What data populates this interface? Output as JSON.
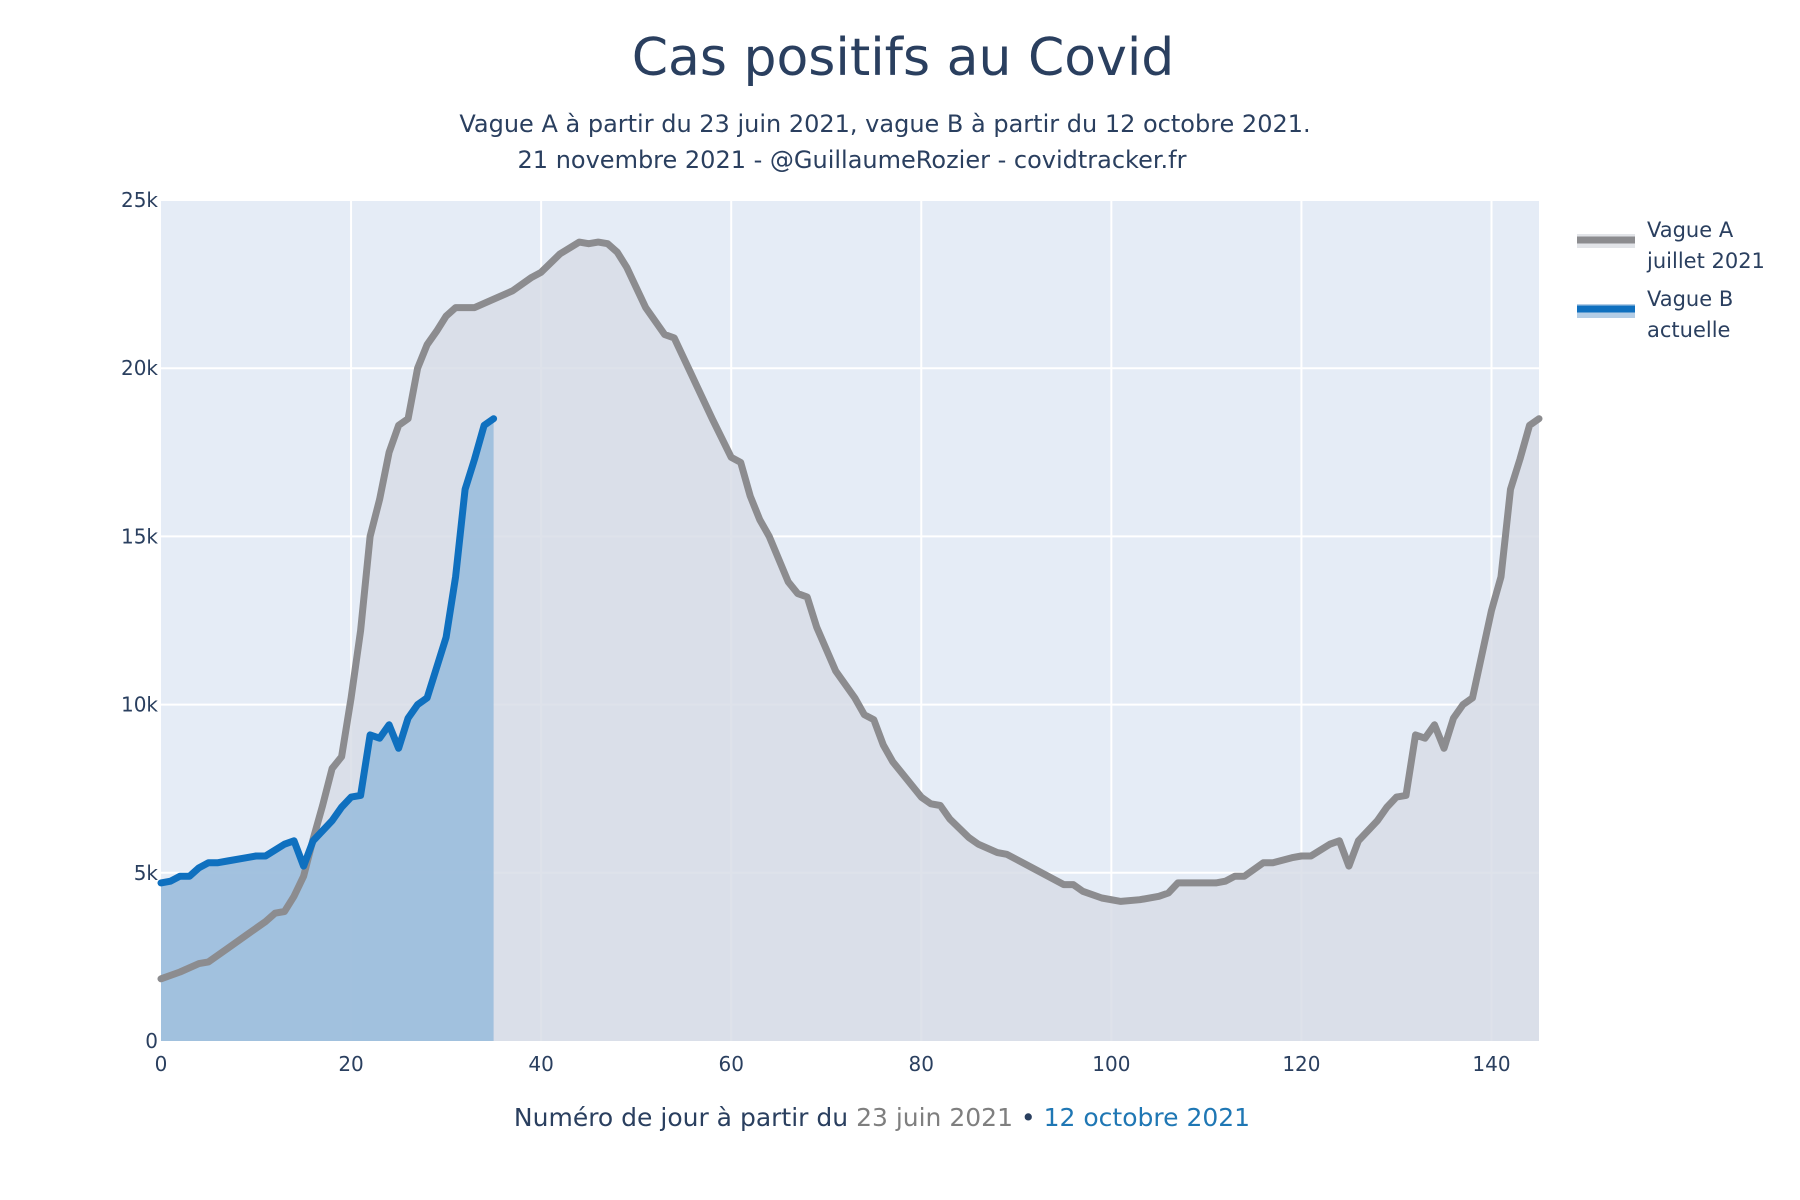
{
  "chart_data": {
    "type": "line",
    "title": "Cas positifs au Covid",
    "subtitle": [
      "Vague A à partir du 23 juin 2021, vague B à partir du 12 octobre 2021.",
      "21 novembre 2021 - @GuillaumeRozier - covidtracker.fr"
    ],
    "xlabel": {
      "prefix": "Numéro de jour à partir du ",
      "date_a": "23 juin 2021",
      "separator": " • ",
      "date_b": "12 octobre 2021"
    },
    "xlim": [
      0,
      145
    ],
    "ylim": [
      0,
      25000
    ],
    "x_ticks": [
      0,
      20,
      40,
      60,
      80,
      100,
      120,
      140
    ],
    "x_tick_labels": [
      "0",
      "20",
      "40",
      "60",
      "80",
      "100",
      "120",
      "140"
    ],
    "y_ticks": [
      0,
      5000,
      10000,
      15000,
      20000,
      25000
    ],
    "y_tick_labels": [
      "0",
      "5k",
      "10k",
      "15k",
      "20k",
      "25k"
    ],
    "grid": true,
    "legend_position": "top-right",
    "colors": {
      "plot_bg": "#e5ecf6",
      "wave_a_line": "#8c8c8f",
      "wave_a_fill": "#d8dde6",
      "wave_b_line": "#0f70bf",
      "wave_b_fill": "#9ebfdd",
      "xlabel_date_a": "#7f7f7f",
      "xlabel_date_b": "#1f77b4"
    },
    "series": [
      {
        "name": "Vague A juillet 2021",
        "legend_lines": [
          "Vague A",
          "juillet 2021"
        ],
        "points": [
          [
            0,
            1850
          ],
          [
            2,
            2050
          ],
          [
            4,
            2300
          ],
          [
            5,
            2350
          ],
          [
            7,
            2750
          ],
          [
            9,
            3150
          ],
          [
            11,
            3550
          ],
          [
            12,
            3800
          ],
          [
            13,
            3850
          ],
          [
            14,
            4300
          ],
          [
            15,
            4900
          ],
          [
            16,
            6000
          ],
          [
            17,
            7000
          ],
          [
            18,
            8100
          ],
          [
            19,
            8450
          ],
          [
            20,
            10200
          ],
          [
            21,
            12200
          ],
          [
            22,
            15000
          ],
          [
            23,
            16100
          ],
          [
            24,
            17500
          ],
          [
            25,
            18300
          ],
          [
            26,
            18500
          ],
          [
            27,
            20000
          ],
          [
            28,
            20700
          ],
          [
            29,
            21100
          ],
          [
            30,
            21550
          ],
          [
            31,
            21800
          ],
          [
            33,
            21800
          ],
          [
            35,
            22050
          ],
          [
            37,
            22300
          ],
          [
            39,
            22700
          ],
          [
            40,
            22850
          ],
          [
            42,
            23400
          ],
          [
            44,
            23750
          ],
          [
            45,
            23700
          ],
          [
            46,
            23750
          ],
          [
            47,
            23700
          ],
          [
            48,
            23450
          ],
          [
            49,
            23000
          ],
          [
            51,
            21800
          ],
          [
            53,
            21000
          ],
          [
            54,
            20900
          ],
          [
            56,
            19700
          ],
          [
            58,
            18500
          ],
          [
            60,
            17350
          ],
          [
            61,
            17200
          ],
          [
            62,
            16200
          ],
          [
            63,
            15500
          ],
          [
            64,
            15000
          ],
          [
            66,
            13650
          ],
          [
            67,
            13300
          ],
          [
            68,
            13200
          ],
          [
            69,
            12300
          ],
          [
            71,
            11000
          ],
          [
            73,
            10200
          ],
          [
            74,
            9700
          ],
          [
            75,
            9550
          ],
          [
            76,
            8800
          ],
          [
            77,
            8300
          ],
          [
            78,
            7950
          ],
          [
            80,
            7250
          ],
          [
            81,
            7050
          ],
          [
            82,
            7000
          ],
          [
            83,
            6600
          ],
          [
            85,
            6050
          ],
          [
            86,
            5850
          ],
          [
            88,
            5600
          ],
          [
            89,
            5550
          ],
          [
            91,
            5250
          ],
          [
            93,
            4950
          ],
          [
            95,
            4650
          ],
          [
            96,
            4650
          ],
          [
            97,
            4450
          ],
          [
            99,
            4250
          ],
          [
            101,
            4150
          ],
          [
            103,
            4200
          ],
          [
            105,
            4300
          ],
          [
            106,
            4400
          ],
          [
            107,
            4700
          ],
          [
            109,
            4700
          ],
          [
            111,
            4700
          ],
          [
            112,
            4750
          ],
          [
            113,
            4900
          ],
          [
            114,
            4900
          ],
          [
            116,
            5300
          ],
          [
            117,
            5300
          ],
          [
            119,
            5450
          ],
          [
            120,
            5500
          ],
          [
            121,
            5500
          ],
          [
            123,
            5850
          ],
          [
            124,
            5950
          ],
          [
            125,
            5200
          ],
          [
            126,
            5950
          ],
          [
            128,
            6550
          ],
          [
            129,
            6950
          ],
          [
            130,
            7250
          ],
          [
            131,
            7300
          ],
          [
            132,
            9100
          ],
          [
            133,
            9000
          ],
          [
            134,
            9400
          ],
          [
            135,
            8700
          ],
          [
            136,
            9600
          ],
          [
            137,
            10000
          ],
          [
            138,
            10200
          ],
          [
            139,
            11500
          ],
          [
            140,
            12800
          ],
          [
            141,
            13800
          ],
          [
            142,
            16400
          ],
          [
            143,
            17300
          ],
          [
            144,
            18300
          ],
          [
            145,
            18500
          ]
        ]
      },
      {
        "name": "Vague B actuelle",
        "legend_lines": [
          "Vague B",
          "actuelle"
        ],
        "points": [
          [
            0,
            4700
          ],
          [
            1,
            4750
          ],
          [
            2,
            4900
          ],
          [
            3,
            4900
          ],
          [
            4,
            5150
          ],
          [
            5,
            5300
          ],
          [
            6,
            5300
          ],
          [
            7,
            5350
          ],
          [
            9,
            5450
          ],
          [
            10,
            5500
          ],
          [
            11,
            5500
          ],
          [
            13,
            5850
          ],
          [
            14,
            5950
          ],
          [
            15,
            5200
          ],
          [
            16,
            5950
          ],
          [
            18,
            6550
          ],
          [
            19,
            6950
          ],
          [
            20,
            7250
          ],
          [
            21,
            7300
          ],
          [
            22,
            9100
          ],
          [
            23,
            9000
          ],
          [
            24,
            9400
          ],
          [
            25,
            8700
          ],
          [
            26,
            9600
          ],
          [
            27,
            10000
          ],
          [
            28,
            10200
          ],
          [
            30,
            12000
          ],
          [
            31,
            13800
          ],
          [
            32,
            16400
          ],
          [
            33,
            17300
          ],
          [
            34,
            18300
          ],
          [
            35,
            18500
          ]
        ]
      }
    ]
  }
}
